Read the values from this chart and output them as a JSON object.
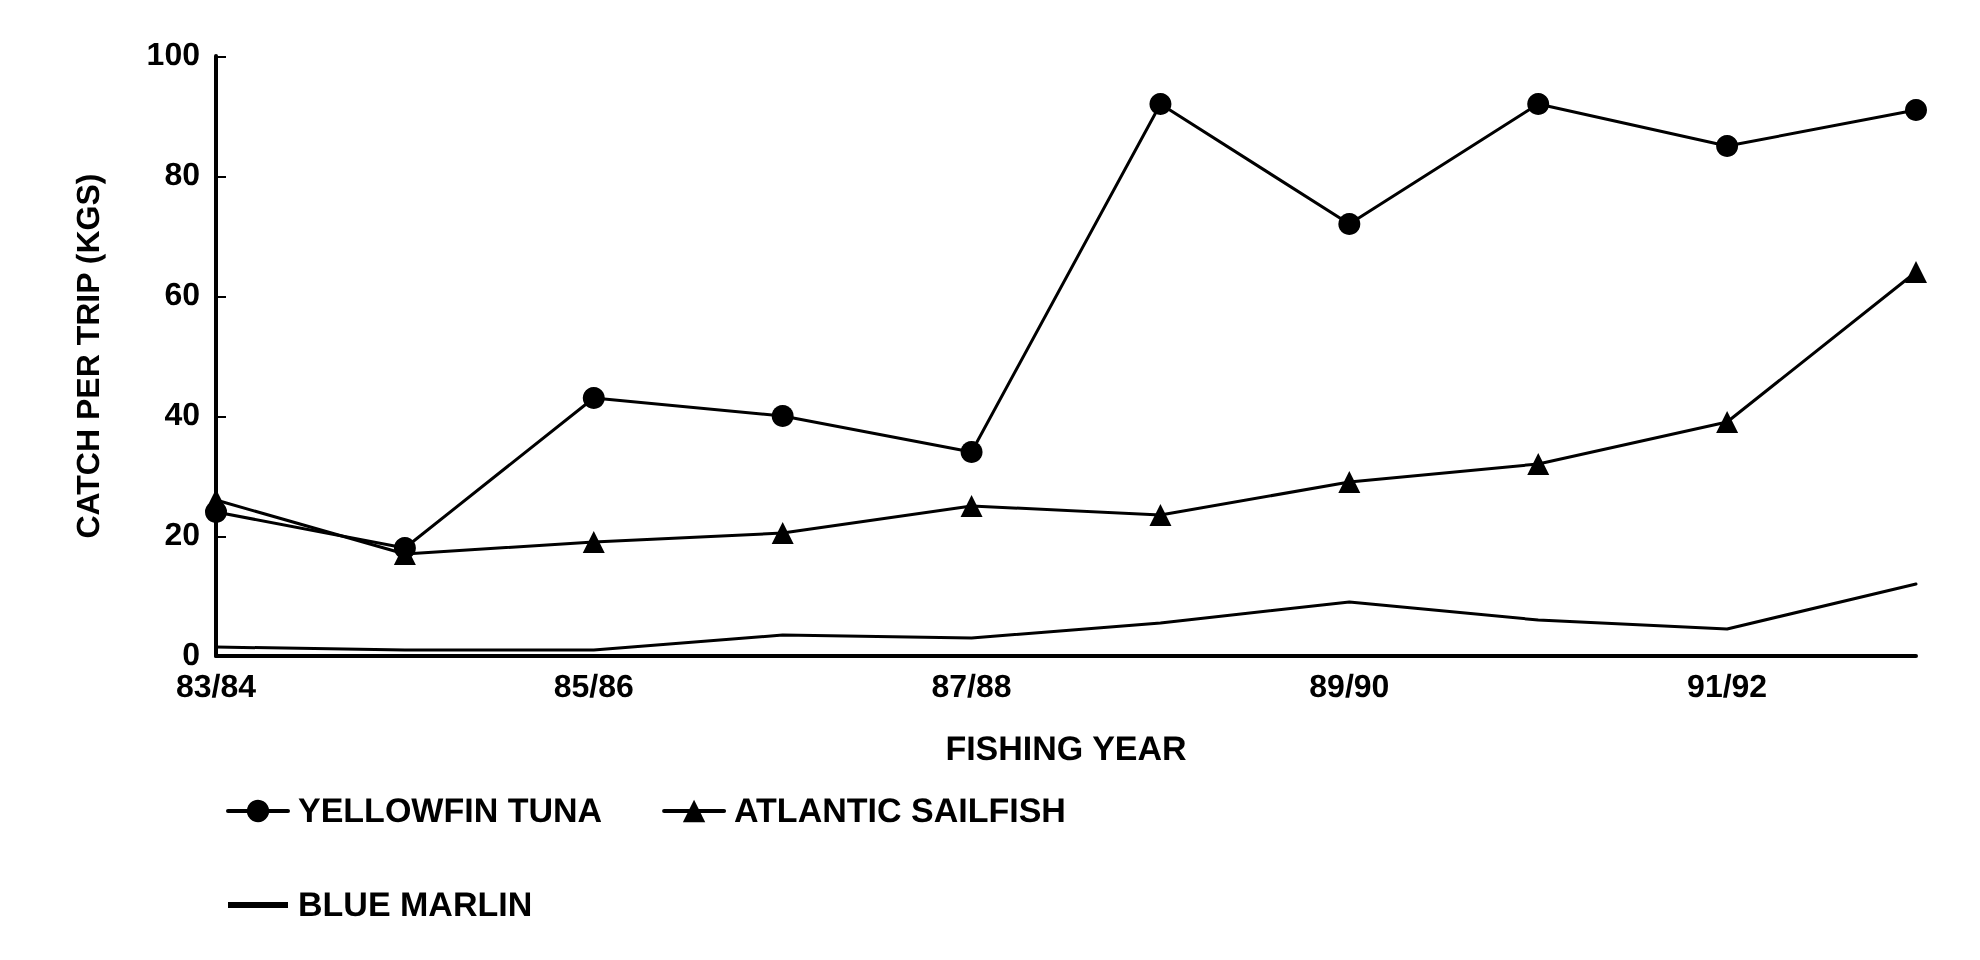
{
  "chart_data": {
    "type": "line",
    "xlabel": "FISHING YEAR",
    "ylabel": "CATCH PER TRIP (KGS)",
    "categories": [
      "83/84",
      null,
      "85/86",
      null,
      "87/88",
      null,
      "89/90",
      null,
      "91/92",
      null
    ],
    "series": [
      {
        "name": "YELLOWFIN TUNA",
        "color": "#000000",
        "marker": "circle",
        "values": [
          24,
          18,
          43,
          40,
          34,
          92,
          72,
          92,
          85,
          91
        ]
      },
      {
        "name": "ATLANTIC SAILFISH",
        "color": "#000000",
        "marker": "triangle",
        "values": [
          26,
          17,
          19,
          20.5,
          25,
          23.5,
          29,
          32,
          39,
          64
        ]
      },
      {
        "name": "BLUE MARLIN",
        "color": "#000000",
        "marker": "none",
        "values": [
          1.5,
          1,
          1,
          3.5,
          3,
          5.5,
          9,
          6,
          4.5,
          12
        ]
      }
    ],
    "ylim": [
      0,
      100
    ],
    "yticks": [
      0,
      20,
      40,
      60,
      80,
      100
    ],
    "grid": false,
    "legend": "bottom",
    "line_style": "solid"
  }
}
